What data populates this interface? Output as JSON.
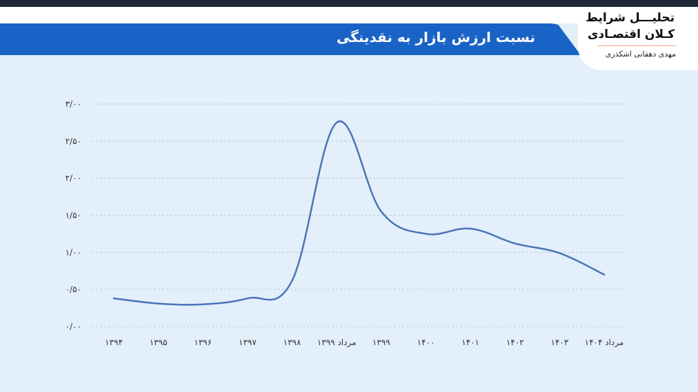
{
  "header": {
    "title": "نسبت ارزش بازار به نقدینگی"
  },
  "brand": {
    "line1": "تحلیـــل شرایط",
    "line2": "کـلان اقتصـادی",
    "author": "مهدی دهقانی اشکذری"
  },
  "colors": {
    "banner": "#1a63c6",
    "line": "#4a73b8",
    "plot_background": "#e3effa"
  },
  "chart_data": {
    "type": "line",
    "title": "نسبت ارزش بازار به نقدینگی",
    "xlabel": "",
    "ylabel": "",
    "ylim": [
      0,
      3
    ],
    "y_ticks": [
      {
        "value": 0,
        "label": "۰/۰۰"
      },
      {
        "value": 0.5,
        "label": "۰/۵۰"
      },
      {
        "value": 1,
        "label": "۱/۰۰"
      },
      {
        "value": 1.5,
        "label": "۱/۵۰"
      },
      {
        "value": 2,
        "label": "۲/۰۰"
      },
      {
        "value": 2.5,
        "label": "۲/۵۰"
      },
      {
        "value": 3,
        "label": "۳/۰۰"
      }
    ],
    "categories": [
      "۱۳۹۴",
      "۱۳۹۵",
      "۱۳۹۶",
      "۱۳۹۷",
      "۱۳۹۸",
      "مرداد ۱۳۹۹",
      "۱۳۹۹",
      "۱۴۰۰",
      "۱۴۰۱",
      "۱۴۰۲",
      "۱۴۰۳",
      "مرداد ۱۴۰۴"
    ],
    "values": [
      0.38,
      0.31,
      0.3,
      0.38,
      0.62,
      2.75,
      1.55,
      1.25,
      1.32,
      1.12,
      0.99,
      0.7
    ],
    "grid": true,
    "legend": "none"
  }
}
